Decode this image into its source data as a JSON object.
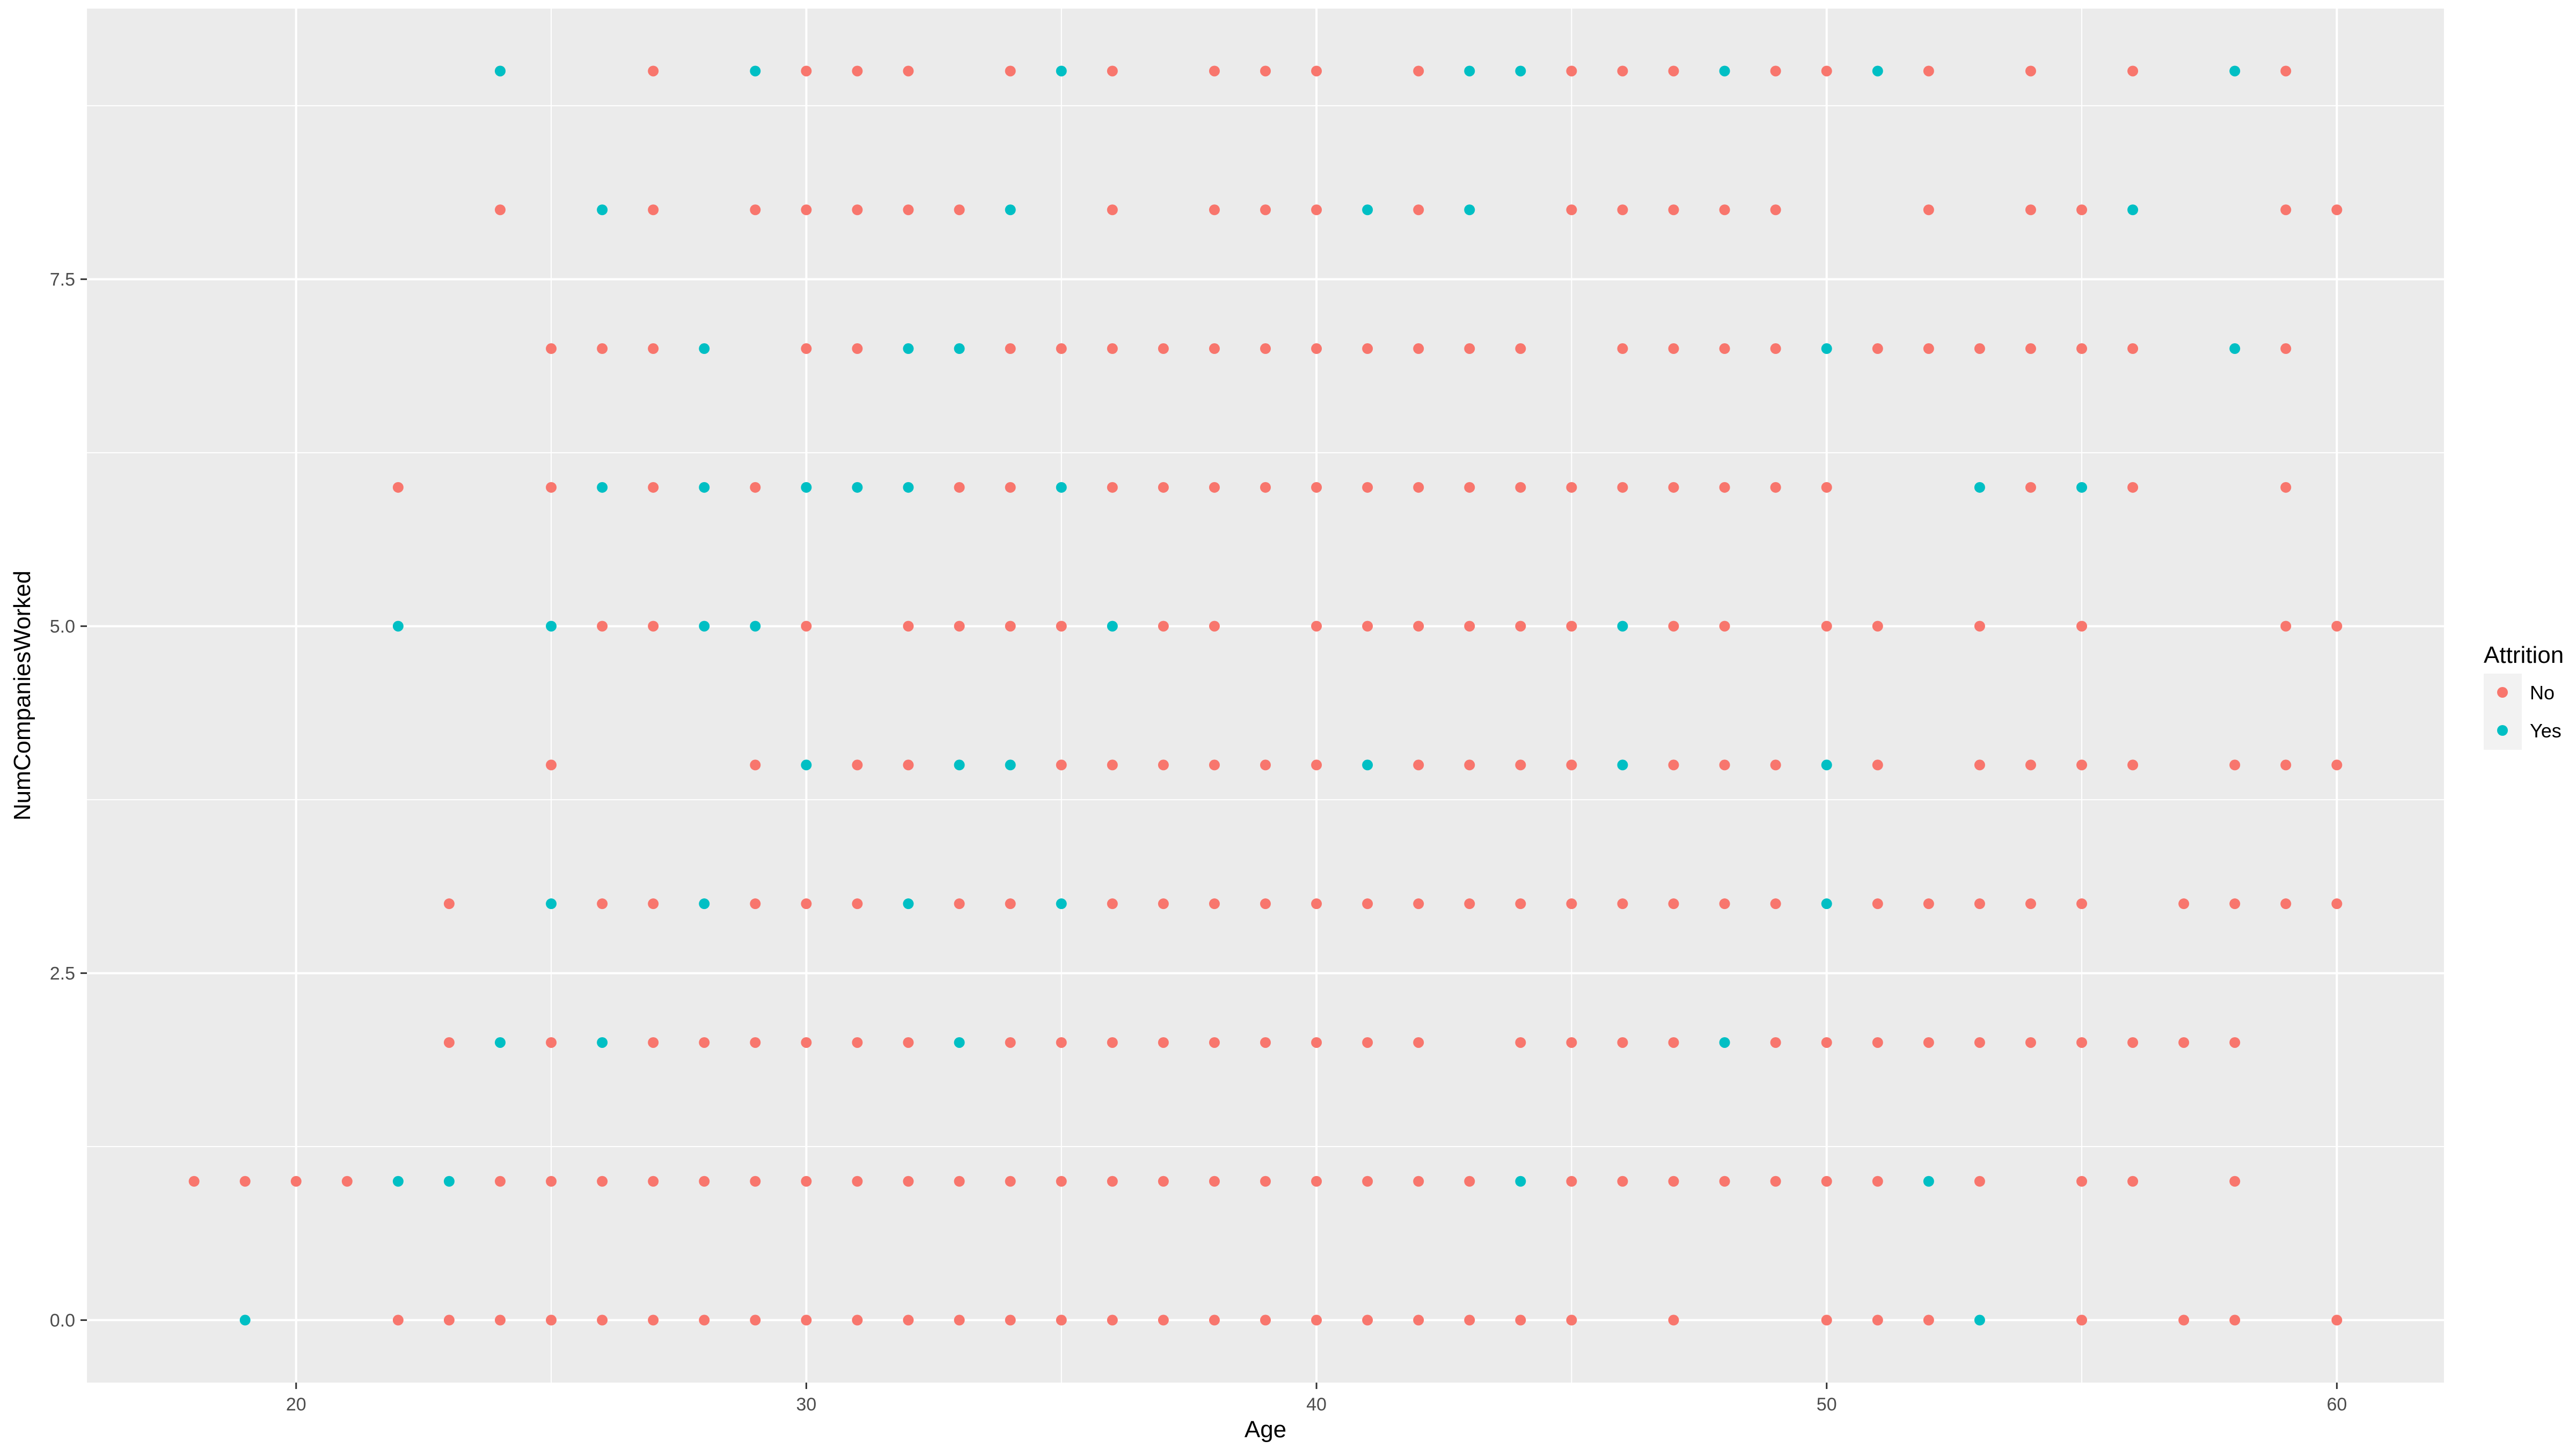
{
  "chart_data": {
    "type": "scatter",
    "xlabel": "Age",
    "ylabel": "NumCompaniesWorked",
    "xlim": [
      15.9,
      62.1
    ],
    "ylim": [
      -0.45,
      9.45
    ],
    "x_ticks": [
      20,
      30,
      40,
      50,
      60
    ],
    "y_ticks": [
      0.0,
      2.5,
      5.0,
      7.5
    ],
    "y_tick_labels": [
      "0.0",
      "2.5",
      "5.0",
      "7.5"
    ],
    "grid": true,
    "background": "#ebebeb",
    "legend": {
      "title": "Attrition",
      "position": "right"
    },
    "series": [
      {
        "name": "No",
        "color": "#f8766d",
        "points": [
          [
            24,
            9
          ],
          [
            27,
            9
          ],
          [
            30,
            9
          ],
          [
            31,
            9
          ],
          [
            32,
            9
          ],
          [
            34,
            9
          ],
          [
            36,
            9
          ],
          [
            38,
            9
          ],
          [
            39,
            9
          ],
          [
            40,
            9
          ],
          [
            42,
            9
          ],
          [
            45,
            9
          ],
          [
            46,
            9
          ],
          [
            47,
            9
          ],
          [
            49,
            9
          ],
          [
            50,
            9
          ],
          [
            52,
            9
          ],
          [
            54,
            9
          ],
          [
            56,
            9
          ],
          [
            59,
            9
          ],
          [
            24,
            8
          ],
          [
            27,
            8
          ],
          [
            29,
            8
          ],
          [
            30,
            8
          ],
          [
            31,
            8
          ],
          [
            32,
            8
          ],
          [
            33,
            8
          ],
          [
            36,
            8
          ],
          [
            38,
            8
          ],
          [
            39,
            8
          ],
          [
            40,
            8
          ],
          [
            42,
            8
          ],
          [
            45,
            8
          ],
          [
            46,
            8
          ],
          [
            47,
            8
          ],
          [
            48,
            8
          ],
          [
            49,
            8
          ],
          [
            52,
            8
          ],
          [
            54,
            8
          ],
          [
            55,
            8
          ],
          [
            59,
            8
          ],
          [
            60,
            8
          ],
          [
            25,
            7
          ],
          [
            26,
            7
          ],
          [
            27,
            7
          ],
          [
            30,
            7
          ],
          [
            31,
            7
          ],
          [
            34,
            7
          ],
          [
            35,
            7
          ],
          [
            36,
            7
          ],
          [
            37,
            7
          ],
          [
            38,
            7
          ],
          [
            39,
            7
          ],
          [
            40,
            7
          ],
          [
            41,
            7
          ],
          [
            42,
            7
          ],
          [
            43,
            7
          ],
          [
            44,
            7
          ],
          [
            46,
            7
          ],
          [
            47,
            7
          ],
          [
            48,
            7
          ],
          [
            49,
            7
          ],
          [
            51,
            7
          ],
          [
            52,
            7
          ],
          [
            53,
            7
          ],
          [
            54,
            7
          ],
          [
            55,
            7
          ],
          [
            56,
            7
          ],
          [
            59,
            7
          ],
          [
            22,
            6
          ],
          [
            25,
            6
          ],
          [
            27,
            6
          ],
          [
            29,
            6
          ],
          [
            33,
            6
          ],
          [
            34,
            6
          ],
          [
            36,
            6
          ],
          [
            37,
            6
          ],
          [
            38,
            6
          ],
          [
            39,
            6
          ],
          [
            40,
            6
          ],
          [
            41,
            6
          ],
          [
            42,
            6
          ],
          [
            43,
            6
          ],
          [
            44,
            6
          ],
          [
            45,
            6
          ],
          [
            46,
            6
          ],
          [
            47,
            6
          ],
          [
            48,
            6
          ],
          [
            49,
            6
          ],
          [
            50,
            6
          ],
          [
            54,
            6
          ],
          [
            56,
            6
          ],
          [
            59,
            6
          ],
          [
            26,
            5
          ],
          [
            27,
            5
          ],
          [
            30,
            5
          ],
          [
            32,
            5
          ],
          [
            33,
            5
          ],
          [
            34,
            5
          ],
          [
            35,
            5
          ],
          [
            37,
            5
          ],
          [
            38,
            5
          ],
          [
            40,
            5
          ],
          [
            41,
            5
          ],
          [
            42,
            5
          ],
          [
            43,
            5
          ],
          [
            44,
            5
          ],
          [
            45,
            5
          ],
          [
            47,
            5
          ],
          [
            48,
            5
          ],
          [
            50,
            5
          ],
          [
            51,
            5
          ],
          [
            53,
            5
          ],
          [
            55,
            5
          ],
          [
            59,
            5
          ],
          [
            60,
            5
          ],
          [
            25,
            4
          ],
          [
            29,
            4
          ],
          [
            31,
            4
          ],
          [
            32,
            4
          ],
          [
            35,
            4
          ],
          [
            36,
            4
          ],
          [
            37,
            4
          ],
          [
            38,
            4
          ],
          [
            39,
            4
          ],
          [
            40,
            4
          ],
          [
            42,
            4
          ],
          [
            43,
            4
          ],
          [
            44,
            4
          ],
          [
            45,
            4
          ],
          [
            47,
            4
          ],
          [
            48,
            4
          ],
          [
            49,
            4
          ],
          [
            51,
            4
          ],
          [
            53,
            4
          ],
          [
            54,
            4
          ],
          [
            55,
            4
          ],
          [
            56,
            4
          ],
          [
            58,
            4
          ],
          [
            59,
            4
          ],
          [
            60,
            4
          ],
          [
            23,
            3
          ],
          [
            26,
            3
          ],
          [
            27,
            3
          ],
          [
            29,
            3
          ],
          [
            30,
            3
          ],
          [
            31,
            3
          ],
          [
            33,
            3
          ],
          [
            34,
            3
          ],
          [
            36,
            3
          ],
          [
            37,
            3
          ],
          [
            38,
            3
          ],
          [
            39,
            3
          ],
          [
            40,
            3
          ],
          [
            41,
            3
          ],
          [
            42,
            3
          ],
          [
            43,
            3
          ],
          [
            44,
            3
          ],
          [
            45,
            3
          ],
          [
            46,
            3
          ],
          [
            47,
            3
          ],
          [
            48,
            3
          ],
          [
            49,
            3
          ],
          [
            51,
            3
          ],
          [
            52,
            3
          ],
          [
            53,
            3
          ],
          [
            54,
            3
          ],
          [
            55,
            3
          ],
          [
            57,
            3
          ],
          [
            58,
            3
          ],
          [
            59,
            3
          ],
          [
            60,
            3
          ],
          [
            23,
            2
          ],
          [
            25,
            2
          ],
          [
            27,
            2
          ],
          [
            28,
            2
          ],
          [
            29,
            2
          ],
          [
            30,
            2
          ],
          [
            31,
            2
          ],
          [
            32,
            2
          ],
          [
            34,
            2
          ],
          [
            35,
            2
          ],
          [
            36,
            2
          ],
          [
            37,
            2
          ],
          [
            38,
            2
          ],
          [
            39,
            2
          ],
          [
            40,
            2
          ],
          [
            41,
            2
          ],
          [
            42,
            2
          ],
          [
            44,
            2
          ],
          [
            45,
            2
          ],
          [
            46,
            2
          ],
          [
            47,
            2
          ],
          [
            49,
            2
          ],
          [
            50,
            2
          ],
          [
            51,
            2
          ],
          [
            52,
            2
          ],
          [
            53,
            2
          ],
          [
            54,
            2
          ],
          [
            55,
            2
          ],
          [
            56,
            2
          ],
          [
            57,
            2
          ],
          [
            58,
            2
          ],
          [
            18,
            1
          ],
          [
            19,
            1
          ],
          [
            20,
            1
          ],
          [
            21,
            1
          ],
          [
            24,
            1
          ],
          [
            25,
            1
          ],
          [
            26,
            1
          ],
          [
            27,
            1
          ],
          [
            28,
            1
          ],
          [
            29,
            1
          ],
          [
            30,
            1
          ],
          [
            31,
            1
          ],
          [
            32,
            1
          ],
          [
            33,
            1
          ],
          [
            34,
            1
          ],
          [
            35,
            1
          ],
          [
            36,
            1
          ],
          [
            37,
            1
          ],
          [
            38,
            1
          ],
          [
            39,
            1
          ],
          [
            40,
            1
          ],
          [
            41,
            1
          ],
          [
            42,
            1
          ],
          [
            43,
            1
          ],
          [
            45,
            1
          ],
          [
            46,
            1
          ],
          [
            47,
            1
          ],
          [
            48,
            1
          ],
          [
            49,
            1
          ],
          [
            50,
            1
          ],
          [
            51,
            1
          ],
          [
            53,
            1
          ],
          [
            55,
            1
          ],
          [
            56,
            1
          ],
          [
            58,
            1
          ],
          [
            22,
            0
          ],
          [
            23,
            0
          ],
          [
            24,
            0
          ],
          [
            25,
            0
          ],
          [
            26,
            0
          ],
          [
            27,
            0
          ],
          [
            28,
            0
          ],
          [
            29,
            0
          ],
          [
            30,
            0
          ],
          [
            31,
            0
          ],
          [
            32,
            0
          ],
          [
            33,
            0
          ],
          [
            34,
            0
          ],
          [
            35,
            0
          ],
          [
            36,
            0
          ],
          [
            37,
            0
          ],
          [
            38,
            0
          ],
          [
            39,
            0
          ],
          [
            40,
            0
          ],
          [
            41,
            0
          ],
          [
            42,
            0
          ],
          [
            43,
            0
          ],
          [
            44,
            0
          ],
          [
            45,
            0
          ],
          [
            47,
            0
          ],
          [
            50,
            0
          ],
          [
            51,
            0
          ],
          [
            52,
            0
          ],
          [
            55,
            0
          ],
          [
            57,
            0
          ],
          [
            58,
            0
          ],
          [
            60,
            0
          ]
        ]
      },
      {
        "name": "Yes",
        "color": "#00bfc4",
        "points": [
          [
            24,
            9
          ],
          [
            29,
            9
          ],
          [
            35,
            9
          ],
          [
            43,
            9
          ],
          [
            44,
            9
          ],
          [
            48,
            9
          ],
          [
            51,
            9
          ],
          [
            58,
            9
          ],
          [
            26,
            8
          ],
          [
            34,
            8
          ],
          [
            41,
            8
          ],
          [
            43,
            8
          ],
          [
            56,
            8
          ],
          [
            28,
            7
          ],
          [
            32,
            7
          ],
          [
            33,
            7
          ],
          [
            50,
            7
          ],
          [
            58,
            7
          ],
          [
            26,
            6
          ],
          [
            28,
            6
          ],
          [
            30,
            6
          ],
          [
            31,
            6
          ],
          [
            32,
            6
          ],
          [
            35,
            6
          ],
          [
            53,
            6
          ],
          [
            55,
            6
          ],
          [
            22,
            5
          ],
          [
            25,
            5
          ],
          [
            28,
            5
          ],
          [
            29,
            5
          ],
          [
            36,
            5
          ],
          [
            46,
            5
          ],
          [
            30,
            4
          ],
          [
            33,
            4
          ],
          [
            34,
            4
          ],
          [
            41,
            4
          ],
          [
            46,
            4
          ],
          [
            50,
            4
          ],
          [
            25,
            3
          ],
          [
            28,
            3
          ],
          [
            32,
            3
          ],
          [
            35,
            3
          ],
          [
            50,
            3
          ],
          [
            24,
            2
          ],
          [
            26,
            2
          ],
          [
            33,
            2
          ],
          [
            48,
            2
          ],
          [
            22,
            1
          ],
          [
            23,
            1
          ],
          [
            44,
            1
          ],
          [
            52,
            1
          ],
          [
            19,
            0
          ],
          [
            53,
            0
          ]
        ]
      }
    ]
  }
}
